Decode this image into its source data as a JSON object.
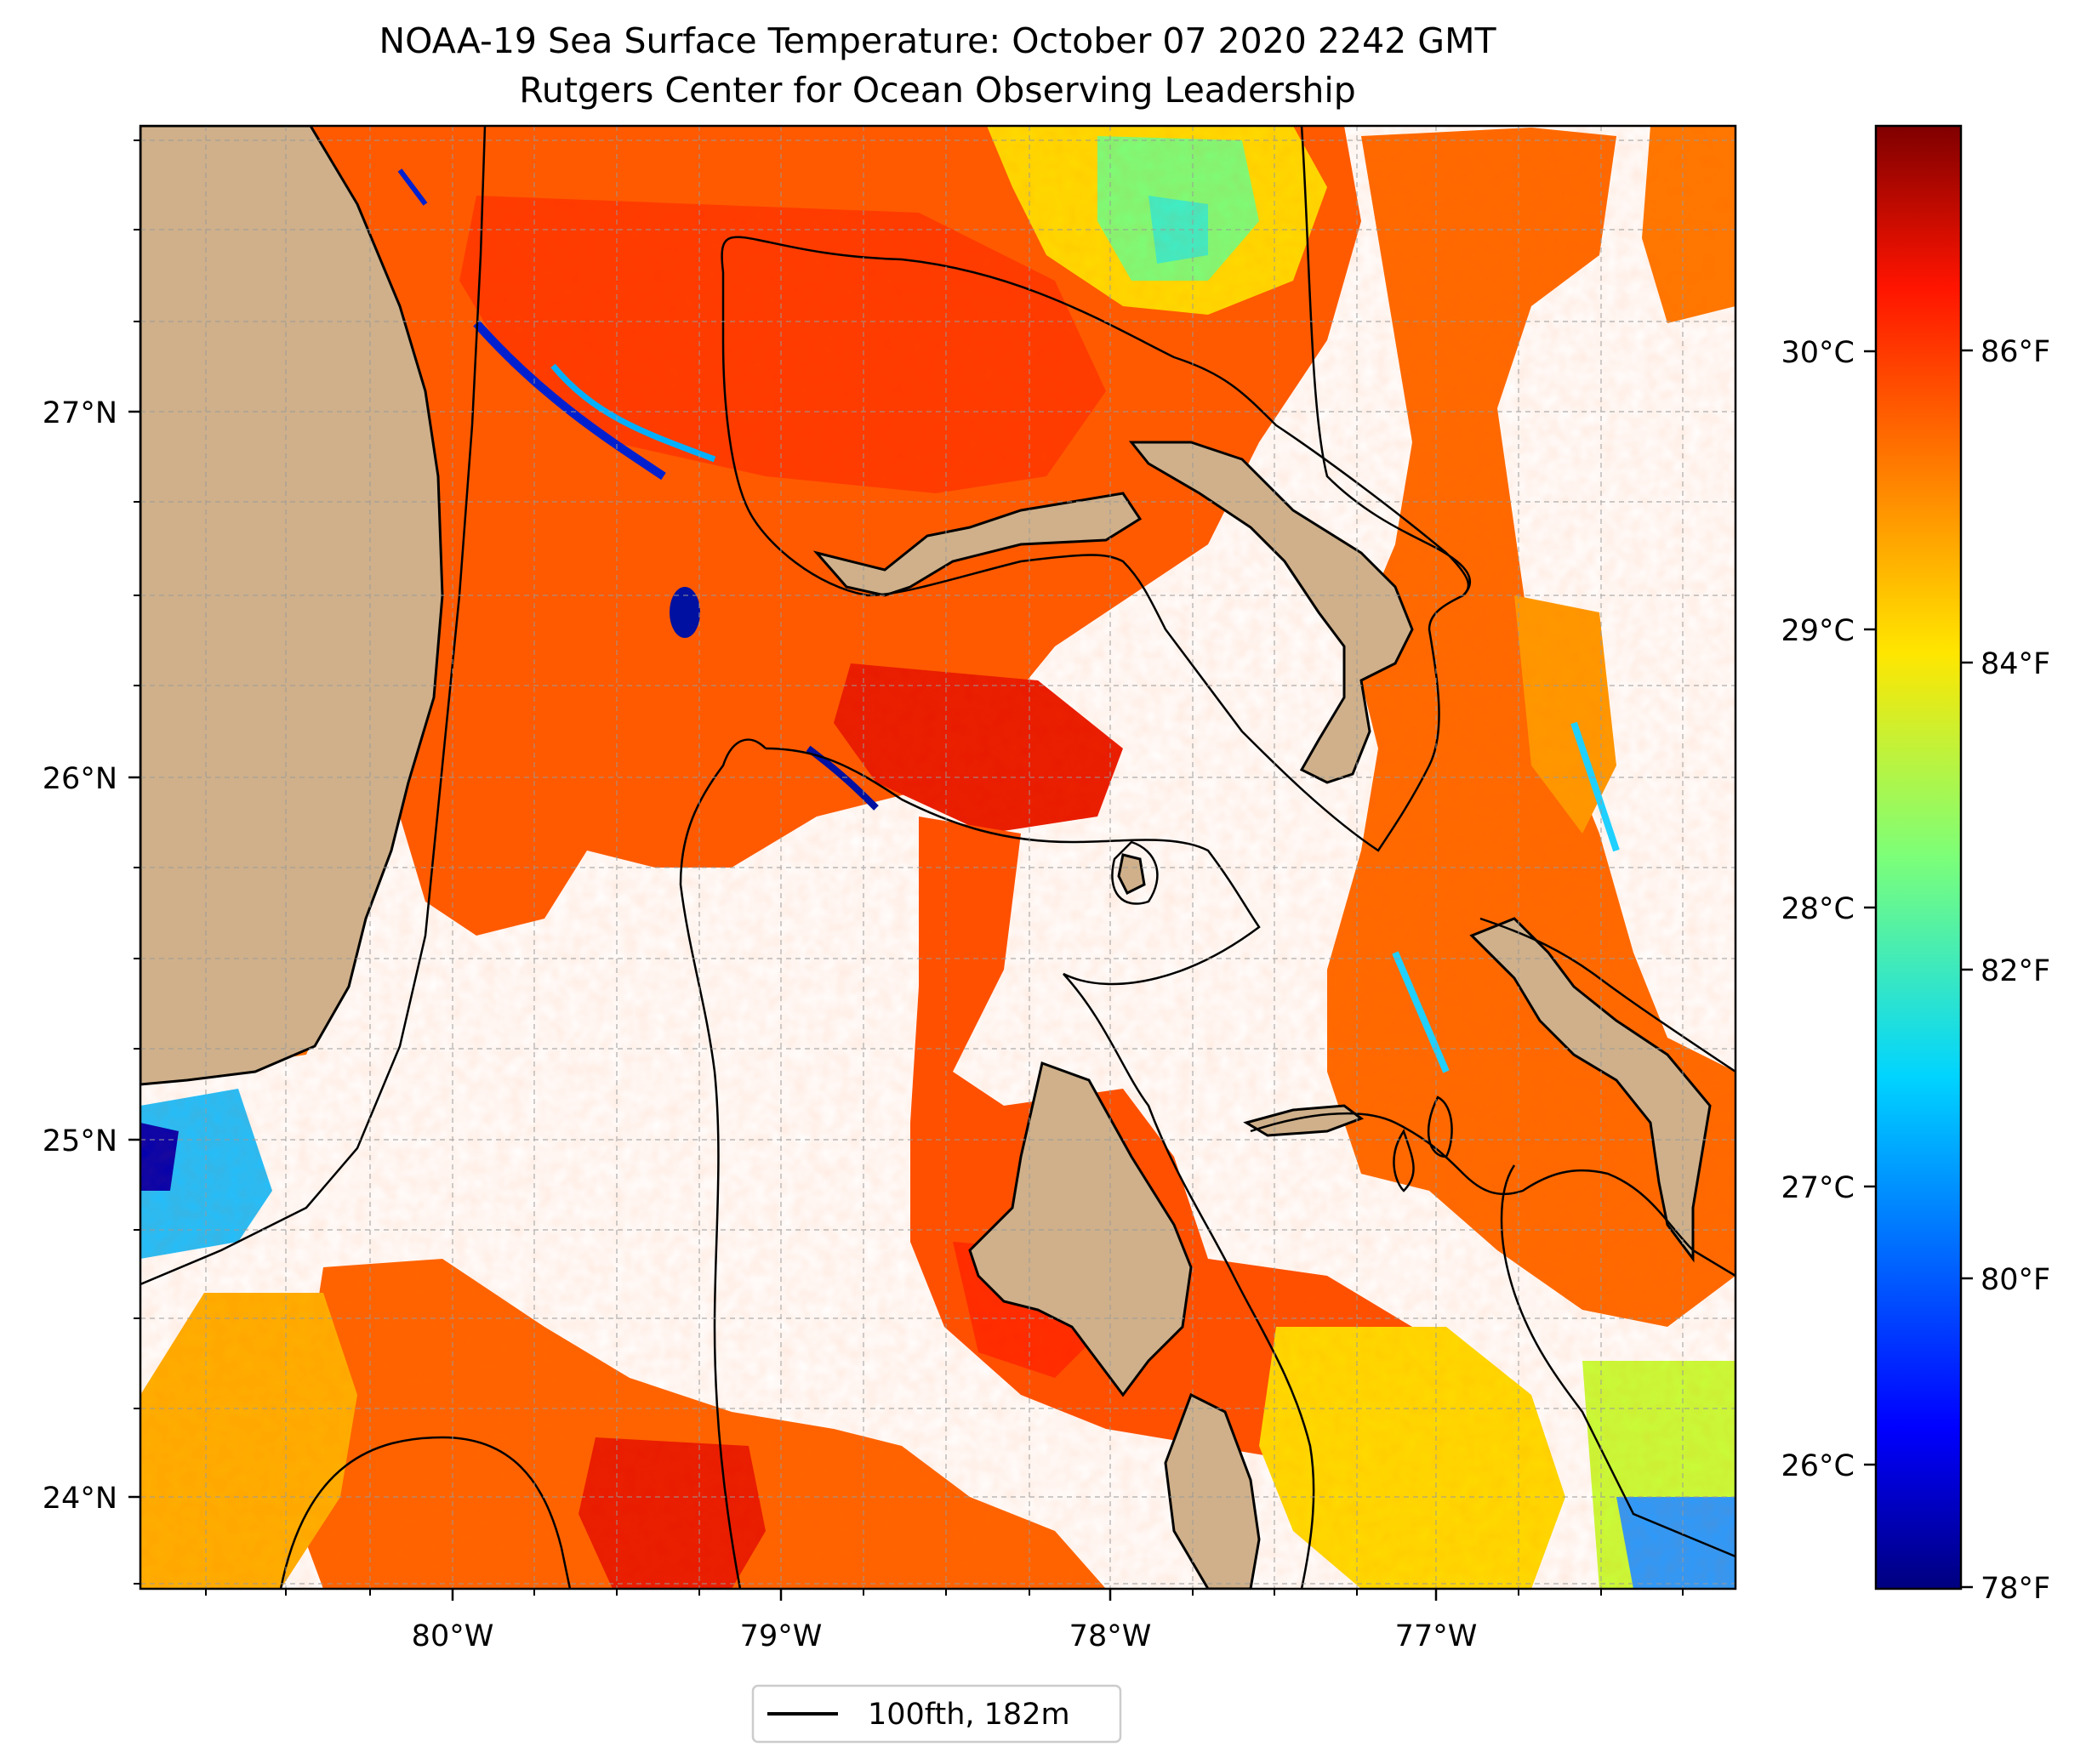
{
  "title": {
    "line1": "NOAA-19 Sea Surface Temperature: October 07 2020 2242 GMT",
    "line2": "Rutgers Center for Ocean Observing Leadership"
  },
  "map": {
    "lon_ticks": [
      "80°W",
      "79°W",
      "78°W",
      "77°W"
    ],
    "lat_ticks": [
      "27°N",
      "26°N",
      "25°N",
      "24°N"
    ],
    "land_color": "#cfb08a",
    "cloud_color": "#ffffff",
    "gridlines": true
  },
  "colorbar": {
    "colormap": "jet",
    "celsius_ticks": [
      "30°C",
      "29°C",
      "28°C",
      "27°C",
      "26°C"
    ],
    "fahrenheit_ticks": [
      "86°F",
      "84°F",
      "82°F",
      "80°F",
      "78°F"
    ],
    "range_f": [
      78,
      88
    ]
  },
  "legend": {
    "label": "100fth, 182m",
    "line_color": "#000000",
    "location": "bottom-center"
  }
}
